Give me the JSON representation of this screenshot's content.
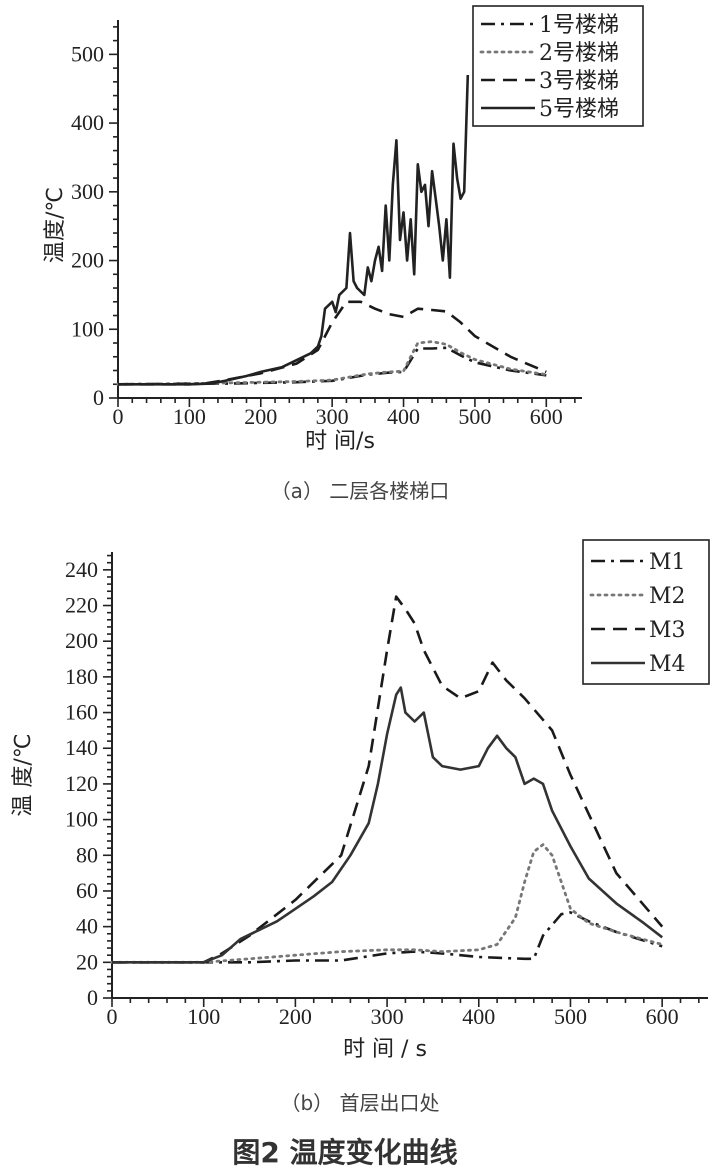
{
  "figure_title": "图2  温度变化曲线",
  "chart_data": [
    {
      "type": "line",
      "caption": "（a）  二层各楼梯口",
      "xlabel": "时 间/s",
      "ylabel": "温度/℃",
      "xlim": [
        0,
        650
      ],
      "ylim": [
        0,
        550
      ],
      "xticks": [
        0,
        100,
        200,
        300,
        400,
        500,
        600
      ],
      "yticks": [
        0,
        100,
        200,
        300,
        400,
        500
      ],
      "legend_position": "top-right",
      "series": [
        {
          "name": "1号楼梯",
          "style": "dashdot",
          "color": "#1a1a1a",
          "x": [
            0,
            100,
            150,
            200,
            250,
            300,
            350,
            380,
            400,
            410,
            420,
            440,
            460,
            480,
            500,
            550,
            600
          ],
          "y": [
            20,
            21,
            21,
            22,
            23,
            25,
            34,
            37,
            38,
            55,
            72,
            72,
            73,
            62,
            52,
            40,
            33
          ]
        },
        {
          "name": "2号楼梯",
          "style": "dotted",
          "color": "#777777",
          "x": [
            0,
            100,
            150,
            200,
            250,
            300,
            350,
            380,
            400,
            410,
            420,
            440,
            460,
            480,
            500,
            550,
            600
          ],
          "y": [
            20,
            21,
            22,
            23,
            24,
            26,
            35,
            38,
            39,
            60,
            80,
            82,
            78,
            66,
            56,
            42,
            34
          ]
        },
        {
          "name": "3号楼梯",
          "style": "dashed",
          "color": "#1a1a1a",
          "x": [
            0,
            100,
            120,
            150,
            200,
            250,
            280,
            300,
            320,
            340,
            360,
            380,
            400,
            420,
            440,
            460,
            480,
            500,
            550,
            600
          ],
          "y": [
            20,
            20,
            21,
            26,
            36,
            50,
            70,
            110,
            140,
            140,
            130,
            122,
            118,
            130,
            128,
            126,
            110,
            90,
            60,
            38
          ]
        },
        {
          "name": "5号楼梯",
          "style": "solid",
          "color": "#222222",
          "x": [
            0,
            100,
            130,
            150,
            180,
            200,
            230,
            250,
            270,
            280,
            285,
            290,
            300,
            305,
            310,
            320,
            325,
            330,
            335,
            340,
            345,
            350,
            355,
            360,
            365,
            370,
            375,
            380,
            385,
            390,
            395,
            400,
            405,
            410,
            415,
            420,
            425,
            430,
            435,
            440,
            445,
            450,
            455,
            460,
            465,
            470,
            475,
            480,
            485,
            490
          ],
          "y": [
            20,
            20,
            21,
            25,
            32,
            38,
            45,
            55,
            65,
            75,
            90,
            130,
            140,
            125,
            150,
            160,
            240,
            170,
            160,
            155,
            150,
            190,
            170,
            200,
            220,
            185,
            280,
            200,
            310,
            375,
            230,
            270,
            200,
            260,
            180,
            340,
            300,
            310,
            250,
            330,
            290,
            250,
            200,
            260,
            175,
            370,
            320,
            290,
            300,
            470
          ]
        }
      ]
    },
    {
      "type": "line",
      "caption": "（b）  首层出口处",
      "xlabel": "时 间 / s",
      "ylabel": "温 度/℃",
      "xlim": [
        0,
        650
      ],
      "ylim": [
        0,
        250
      ],
      "xticks": [
        0,
        100,
        200,
        300,
        400,
        500,
        600
      ],
      "yticks": [
        0,
        20,
        40,
        60,
        80,
        100,
        120,
        140,
        160,
        180,
        200,
        220,
        240
      ],
      "legend_position": "top-right",
      "series": [
        {
          "name": "M1",
          "style": "dashdot",
          "color": "#1a1a1a",
          "x": [
            0,
            100,
            150,
            200,
            250,
            300,
            330,
            360,
            400,
            450,
            460,
            470,
            490,
            500,
            520,
            550,
            600
          ],
          "y": [
            20,
            20,
            20,
            21,
            21,
            25,
            26,
            25,
            23,
            22,
            22,
            35,
            47,
            48,
            43,
            37,
            29
          ]
        },
        {
          "name": "M2",
          "style": "dotted",
          "color": "#777777",
          "x": [
            0,
            100,
            150,
            200,
            250,
            300,
            330,
            360,
            400,
            420,
            440,
            450,
            460,
            470,
            480,
            490,
            500,
            520,
            550,
            600
          ],
          "y": [
            20,
            20,
            22,
            24,
            26,
            27,
            27,
            26,
            27,
            30,
            45,
            65,
            82,
            86,
            80,
            65,
            50,
            42,
            37,
            30
          ]
        },
        {
          "name": "M3",
          "style": "dashed",
          "color": "#1a1a1a",
          "x": [
            0,
            100,
            120,
            150,
            200,
            250,
            280,
            300,
            310,
            320,
            330,
            340,
            360,
            380,
            400,
            415,
            430,
            450,
            480,
            500,
            550,
            600
          ],
          "y": [
            20,
            20,
            25,
            35,
            55,
            80,
            130,
            195,
            225,
            218,
            210,
            195,
            175,
            168,
            172,
            188,
            178,
            168,
            150,
            125,
            70,
            40
          ]
        },
        {
          "name": "M4",
          "style": "solid",
          "color": "#333333",
          "x": [
            0,
            100,
            120,
            140,
            160,
            180,
            200,
            220,
            240,
            260,
            280,
            290,
            300,
            310,
            315,
            320,
            330,
            340,
            350,
            360,
            380,
            400,
            410,
            420,
            430,
            440,
            450,
            460,
            470,
            480,
            500,
            520,
            550,
            580,
            600
          ],
          "y": [
            20,
            20,
            24,
            33,
            38,
            43,
            50,
            57,
            65,
            80,
            98,
            120,
            148,
            170,
            174,
            160,
            155,
            160,
            135,
            130,
            128,
            130,
            140,
            147,
            140,
            135,
            120,
            123,
            120,
            105,
            85,
            67,
            53,
            42,
            34
          ]
        }
      ]
    }
  ]
}
